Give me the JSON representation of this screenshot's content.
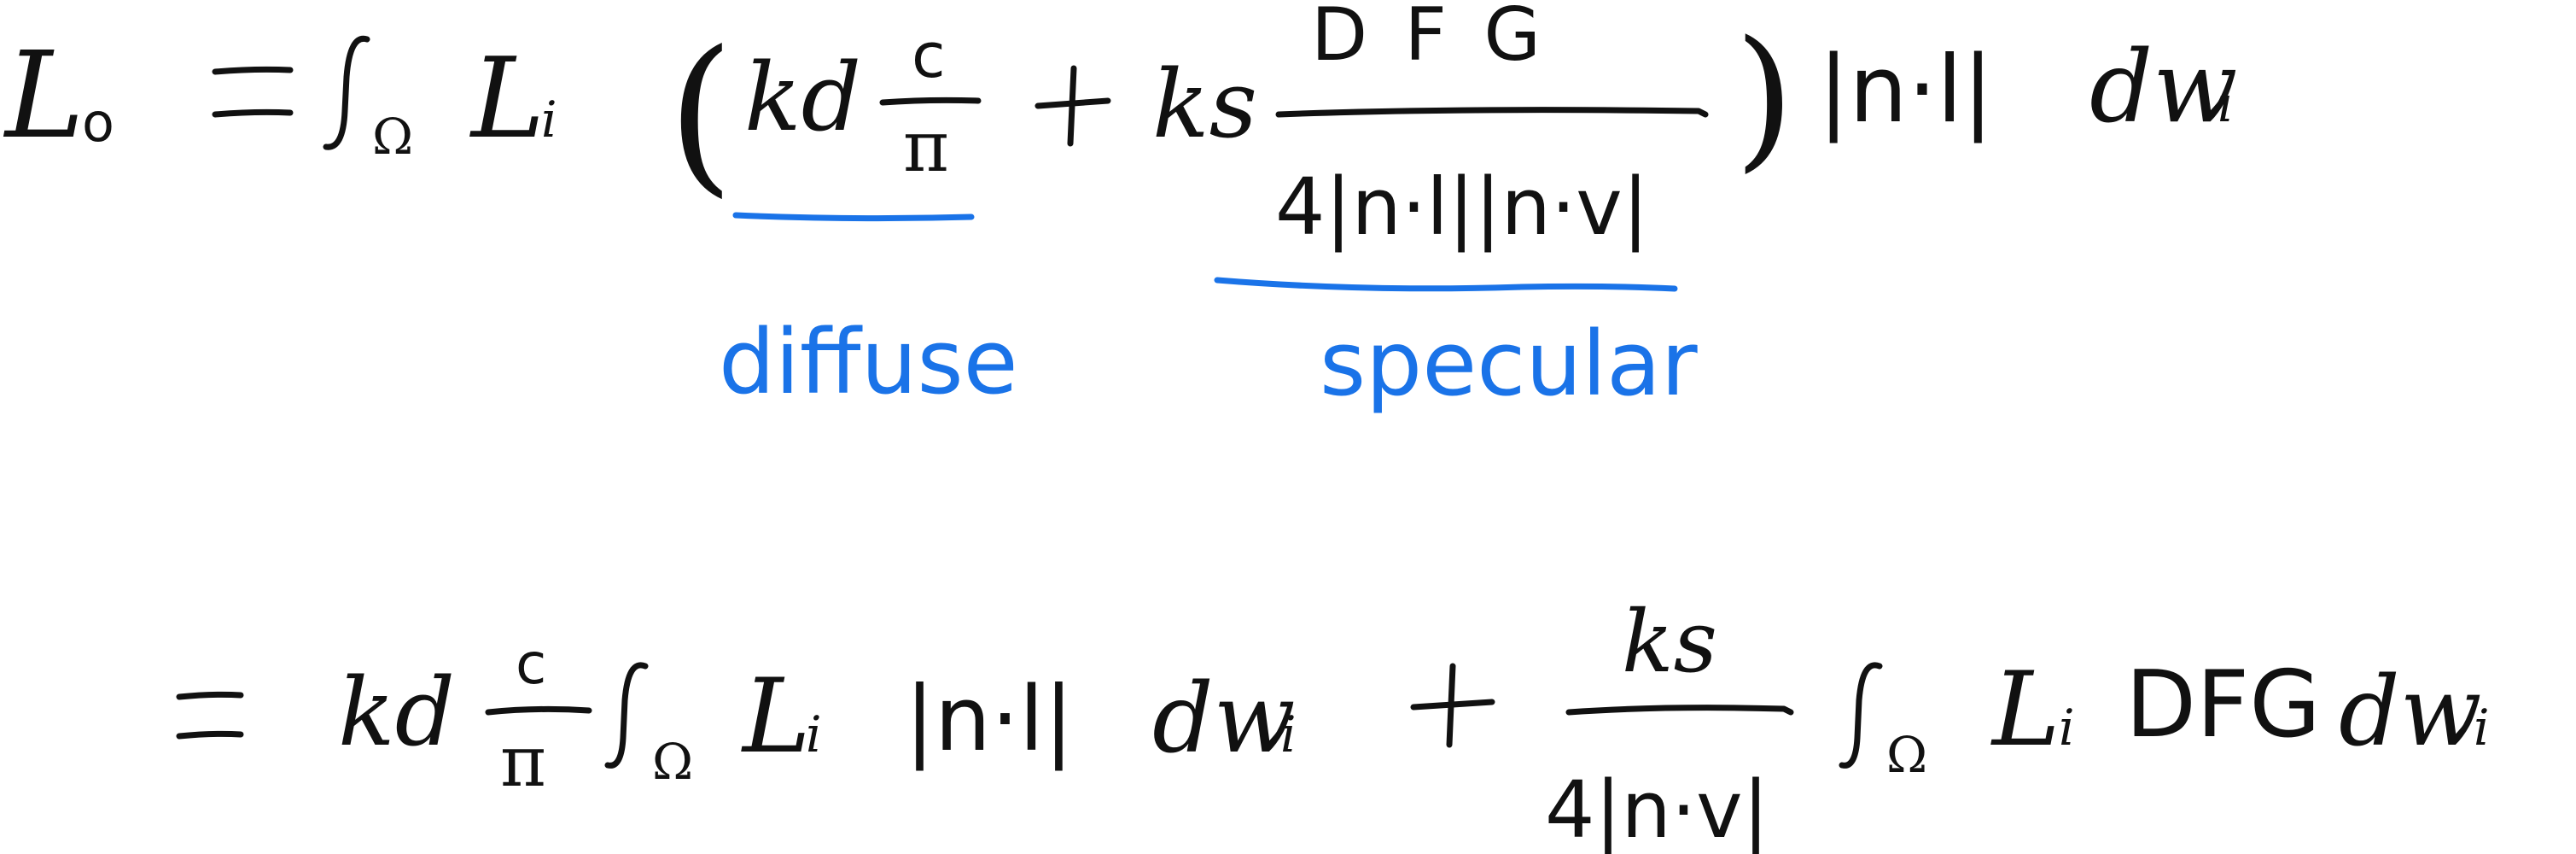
{
  "colors": {
    "ink": "#111111",
    "annotation": "#1a73e8",
    "background": "#ffffff"
  },
  "equation1": {
    "lhs": "L",
    "lhs_sub": "o",
    "equals": "=",
    "integral_domain": "Ω",
    "radiance": "L",
    "radiance_sub": "i",
    "open_paren": "(",
    "kd": "kd",
    "c": "c",
    "pi": "π",
    "plus": "+",
    "ks": "ks",
    "dfg": "D F G",
    "spec_denominator": "4|n·l||n·v|",
    "close_paren": ")",
    "cos_term": "|n·l|",
    "dw": "dw",
    "dw_sub": "i"
  },
  "annotations": {
    "diffuse": "diffuse",
    "specular": "specular"
  },
  "equation2": {
    "equals": "=",
    "kd": "kd",
    "c": "c",
    "pi": "π",
    "integral_domain": "Ω",
    "radiance": "L",
    "radiance_sub": "i",
    "cos_term": "|n·l|",
    "dw": "dw",
    "dw_sub": "i",
    "plus": "+",
    "ks": "ks",
    "spec_denominator": "4|n·v|",
    "integral_domain_2": "Ω",
    "radiance_2": "L",
    "radiance_2_sub": "i",
    "dfg": "DFG",
    "dw_2": "dw",
    "dw_2_sub": "i"
  }
}
